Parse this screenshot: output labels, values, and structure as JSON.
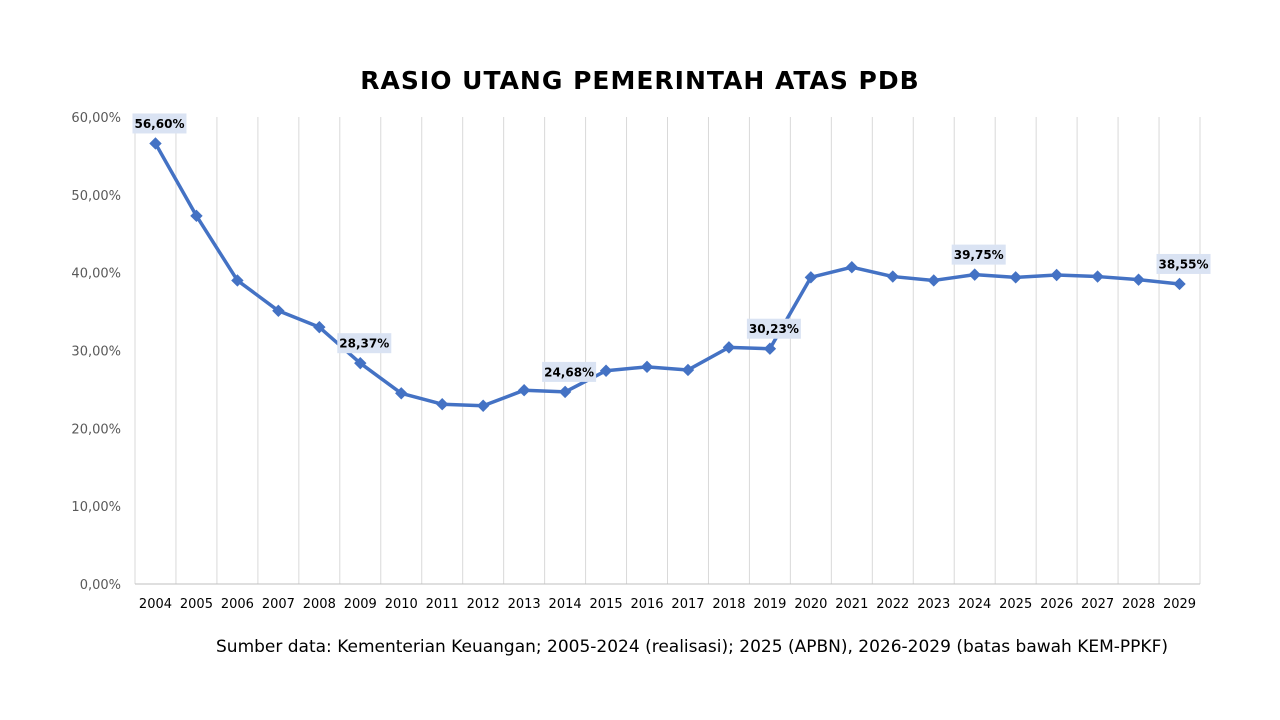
{
  "chart_data": {
    "type": "line",
    "title": "RASIO UTANG PEMERINTAH ATAS PDB",
    "xlabel": "",
    "ylabel": "",
    "ylim": [
      0,
      60
    ],
    "y_ticks": [
      "0,00%",
      "10,00%",
      "20,00%",
      "30,00%",
      "40,00%",
      "50,00%",
      "60,00%"
    ],
    "grid": "vertical",
    "legend": "none",
    "color": "#4472C4",
    "label_bg": "#DAE3F3",
    "x": [
      "2004",
      "2005",
      "2006",
      "2007",
      "2008",
      "2009",
      "2010",
      "2011",
      "2012",
      "2013",
      "2014",
      "2015",
      "2016",
      "2017",
      "2018",
      "2019",
      "2020",
      "2021",
      "2022",
      "2023",
      "2024",
      "2025",
      "2026",
      "2027",
      "2028",
      "2029"
    ],
    "series": [
      {
        "values": [
          56.6,
          47.3,
          39.0,
          35.1,
          33.0,
          28.37,
          24.5,
          23.1,
          22.9,
          24.9,
          24.68,
          27.4,
          27.9,
          27.5,
          30.4,
          30.23,
          39.4,
          40.7,
          39.5,
          39.0,
          39.75,
          39.4,
          39.7,
          39.5,
          39.1,
          38.55
        ]
      }
    ],
    "data_labels": [
      {
        "year": "2004",
        "text": "56,60%"
      },
      {
        "year": "2009",
        "text": "28,37%"
      },
      {
        "year": "2014",
        "text": "24,68%"
      },
      {
        "year": "2019",
        "text": "30,23%"
      },
      {
        "year": "2024",
        "text": "39,75%"
      },
      {
        "year": "2029",
        "text": "38,55%"
      }
    ]
  },
  "source_note": "Sumber data: Kementerian Keuangan; 2005-2024 (realisasi); 2025 (APBN), 2026-2029 (batas bawah KEM-PPKF)"
}
